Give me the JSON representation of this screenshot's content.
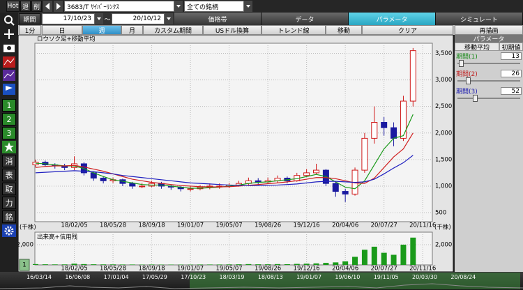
{
  "toolbar": {
    "hot": "Hot",
    "back": "退",
    "delete": "削",
    "symbol": "3683/T ｻｲﾊﾞｰﾘﾝｸｽ",
    "universe": "全ての銘柄"
  },
  "period": {
    "label": "期間",
    "start": "17/10/23",
    "separator": "～",
    "end": "20/10/12"
  },
  "tabs": [
    "価格帯",
    "データ",
    "パラメータ",
    "シミュレート"
  ],
  "intervals": [
    "1分",
    "日",
    "週",
    "月",
    "カスタム期間",
    "USドル換算"
  ],
  "tools": [
    "トレンド線",
    "移動",
    "クリア",
    "再描画"
  ],
  "sidebar": [
    "1",
    "2",
    "3",
    "消",
    "表",
    "取",
    "力",
    "銘"
  ],
  "panel": {
    "title": "パラメータ",
    "headers": [
      "移動平均",
      "初期値"
    ],
    "params": [
      {
        "label": "期間(1)",
        "value": 13,
        "color": "#1a8a1a"
      },
      {
        "label": "期間(2)",
        "value": 26,
        "color": "#c02020"
      },
      {
        "label": "期間(3)",
        "value": 52,
        "color": "#2020b0"
      }
    ]
  },
  "timeline": [
    "16/03/14",
    "16/06/08",
    "17/01/04",
    "17/05/29",
    "17/10/23",
    "18/03/19",
    "18/08/13",
    "19/01/07",
    "19/06/10",
    "19/11/05",
    "20/03/30",
    "20/08/24"
  ],
  "chart_data": [
    {
      "type": "candlestick",
      "title": "ロウソク足+移動平均",
      "categories": [
        null,
        null,
        null,
        null,
        "18/02/05",
        null,
        null,
        null,
        "18/05/28",
        null,
        null,
        null,
        "18/09/18",
        null,
        null,
        null,
        "19/01/07",
        null,
        null,
        null,
        "19/05/07",
        null,
        null,
        null,
        "19/08/26",
        null,
        null,
        null,
        "19/12/16",
        null,
        null,
        null,
        "20/04/06",
        null,
        null,
        null,
        "20/07/27",
        null,
        null,
        null,
        "20/11/16"
      ],
      "open": [
        1400,
        1450,
        1400,
        1380,
        1350,
        1420,
        1250,
        1150,
        1100,
        1120,
        1050,
        1000,
        1000,
        1050,
        1000,
        980,
        950,
        950,
        980,
        1000,
        1000,
        1020,
        1050,
        1100,
        1080,
        1100,
        1150,
        1100,
        1200,
        1250,
        1300,
        1050,
        900,
        850,
        1300,
        1900,
        2200,
        2100,
        1900,
        2600,
        null
      ],
      "high": [
        1500,
        1480,
        1430,
        1420,
        1560,
        1450,
        1280,
        1180,
        1160,
        1140,
        1080,
        1060,
        1100,
        1080,
        1030,
        1000,
        1000,
        1020,
        1050,
        1050,
        1060,
        1100,
        1160,
        1150,
        1160,
        1200,
        1180,
        1250,
        1320,
        1420,
        1320,
        1080,
        950,
        1350,
        2000,
        2500,
        2300,
        2200,
        2700,
        3600,
        null
      ],
      "low": [
        1360,
        1370,
        1330,
        1300,
        1300,
        1200,
        1100,
        1050,
        1060,
        1000,
        950,
        960,
        980,
        950,
        930,
        900,
        900,
        920,
        940,
        950,
        960,
        990,
        1020,
        1020,
        1040,
        1060,
        1050,
        1080,
        1180,
        1220,
        1000,
        800,
        700,
        820,
        1250,
        1800,
        1950,
        1750,
        1850,
        2500,
        null
      ],
      "close": [
        1450,
        1400,
        1380,
        1350,
        1420,
        1250,
        1150,
        1100,
        1120,
        1050,
        1000,
        1000,
        1050,
        1000,
        980,
        950,
        950,
        980,
        1000,
        1000,
        1020,
        1050,
        1100,
        1080,
        1100,
        1150,
        1100,
        1200,
        1250,
        1300,
        1050,
        900,
        850,
        1300,
        1900,
        2200,
        2100,
        1900,
        2600,
        3550,
        null
      ],
      "up_color": "#d01818",
      "down_color": "#1a1aa0",
      "series": [
        {
          "color": "#1a9a1a",
          "values": [
            1430,
            1420,
            1400,
            1380,
            1380,
            1330,
            1250,
            1180,
            1120,
            1090,
            1060,
            1030,
            1020,
            1020,
            1000,
            980,
            960,
            960,
            970,
            980,
            1000,
            1020,
            1050,
            1070,
            1080,
            1100,
            1120,
            1140,
            1180,
            1220,
            1180,
            1080,
            980,
            950,
            1100,
            1400,
            1700,
            1900,
            1950,
            2350,
            null
          ]
        },
        {
          "color": "#d02020",
          "values": [
            1350,
            1370,
            1380,
            1380,
            1390,
            1360,
            1320,
            1280,
            1230,
            1180,
            1130,
            1100,
            1070,
            1050,
            1030,
            1010,
            1000,
            990,
            985,
            985,
            990,
            1000,
            1015,
            1030,
            1045,
            1060,
            1080,
            1100,
            1130,
            1160,
            1160,
            1140,
            1100,
            1060,
            1050,
            1150,
            1350,
            1550,
            1700,
            2000,
            null
          ]
        },
        {
          "color": "#2020c0",
          "values": [
            1250,
            1260,
            1270,
            1280,
            1290,
            1280,
            1270,
            1250,
            1230,
            1200,
            1180,
            1160,
            1140,
            1120,
            1100,
            1080,
            1060,
            1050,
            1040,
            1030,
            1020,
            1015,
            1010,
            1010,
            1015,
            1020,
            1030,
            1040,
            1060,
            1080,
            1090,
            1090,
            1080,
            1070,
            1080,
            1130,
            1230,
            1340,
            1440,
            1580,
            null
          ]
        }
      ],
      "ylim": [
        330,
        3690
      ],
      "yticks": [
        {
          "value": 3500,
          "label": "3,500"
        },
        {
          "value": 3000,
          "label": "3,000"
        },
        {
          "value": 2500,
          "label": "2,500"
        },
        {
          "value": 2000,
          "label": "2,000"
        },
        {
          "value": 1500,
          "label": "1,500"
        },
        {
          "value": 1000,
          "label": "1,000"
        },
        500
      ],
      "grid": true
    },
    {
      "type": "bar",
      "title": "出来高+信用残",
      "unit": "(千株)",
      "categories": [
        null,
        null,
        null,
        null,
        "18/02/05",
        null,
        null,
        null,
        "18/05/28",
        null,
        null,
        null,
        "18/09/18",
        null,
        null,
        null,
        "19/01/07",
        null,
        null,
        null,
        "19/05/07",
        null,
        null,
        null,
        "19/08/26",
        null,
        null,
        null,
        "19/12/16",
        null,
        null,
        null,
        "20/04/06",
        null,
        null,
        null,
        "20/07/27",
        null,
        null,
        null,
        "20/11/16"
      ],
      "values": [
        80,
        60,
        50,
        50,
        120,
        80,
        60,
        50,
        50,
        40,
        40,
        30,
        40,
        30,
        30,
        30,
        30,
        40,
        40,
        40,
        50,
        60,
        80,
        60,
        60,
        80,
        70,
        100,
        120,
        150,
        200,
        250,
        350,
        800,
        1500,
        1800,
        1200,
        1000,
        2000,
        2700,
        null
      ],
      "color": "#1a9a1a",
      "ylim": [
        0,
        3240
      ],
      "yticks": [
        {
          "value": 2000,
          "label": "2,000"
        }
      ],
      "grid": true
    }
  ]
}
